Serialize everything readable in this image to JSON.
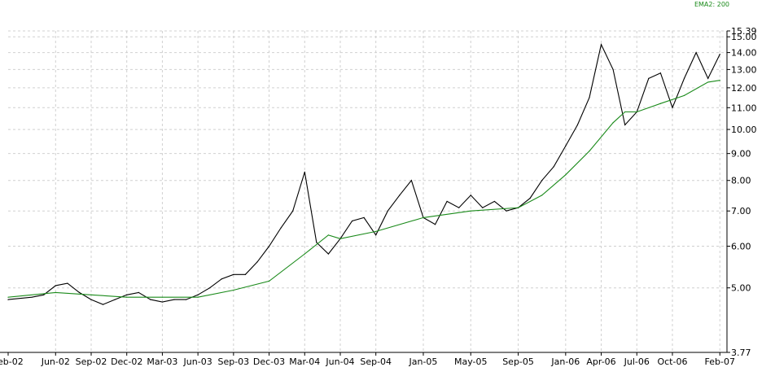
{
  "legend": {
    "ema_label": "EMA2: 200"
  },
  "colors": {
    "price": "#000000",
    "ema": "#1a8a1a",
    "grid": "#d0d0d0",
    "axis": "#000000",
    "background": "#ffffff"
  },
  "chart_data": {
    "type": "line",
    "x_ticks": [
      "Feb-02",
      "Jun-02",
      "Sep-02",
      "Dec-02",
      "Mar-03",
      "Jun-03",
      "Sep-03",
      "Dec-03",
      "Mar-04",
      "Jun-04",
      "Sep-04",
      "Jan-05",
      "May-05",
      "Sep-05",
      "Jan-06",
      "Apr-06",
      "Jul-06",
      "Oct-06",
      "Feb-07"
    ],
    "y_ticks": [
      "15.39",
      "15.00",
      "14.00",
      "13.00",
      "12.00",
      "11.00",
      "10.00",
      "9.00",
      "8.00",
      "7.00",
      "6.00",
      "5.00",
      "3.77"
    ],
    "ylim": [
      3.77,
      15.39
    ],
    "y_scale": "log",
    "grid": true,
    "legend_position": "top-right",
    "series": [
      {
        "name": "",
        "color": "#000000",
        "x": [
          "2002-02",
          "2002-04",
          "2002-05",
          "2002-06",
          "2002-07",
          "2002-08",
          "2002-09",
          "2002-10",
          "2002-11",
          "2002-12",
          "2003-01",
          "2003-02",
          "2003-03",
          "2003-04",
          "2003-05",
          "2003-06",
          "2003-07",
          "2003-08",
          "2003-09",
          "2003-10",
          "2003-11",
          "2003-12",
          "2004-01",
          "2004-02",
          "2004-03",
          "2004-04",
          "2004-05",
          "2004-06",
          "2004-07",
          "2004-08",
          "2004-09",
          "2004-10",
          "2004-11",
          "2004-12",
          "2005-01",
          "2005-02",
          "2005-03",
          "2005-04",
          "2005-05",
          "2005-06",
          "2005-07",
          "2005-08",
          "2005-09",
          "2005-10",
          "2005-11",
          "2005-12",
          "2006-01",
          "2006-02",
          "2006-03",
          "2006-04",
          "2006-05",
          "2006-06",
          "2006-07",
          "2006-08",
          "2006-09",
          "2006-10",
          "2006-11",
          "2006-12",
          "2007-01",
          "2007-02"
        ],
        "values": [
          4.75,
          4.8,
          4.85,
          5.05,
          5.1,
          4.9,
          4.75,
          4.65,
          4.75,
          4.85,
          4.9,
          4.75,
          4.7,
          4.75,
          4.75,
          4.85,
          5.0,
          5.2,
          5.3,
          5.3,
          5.6,
          6.0,
          6.5,
          7.0,
          8.3,
          6.1,
          5.8,
          6.2,
          6.7,
          6.8,
          6.3,
          7.0,
          7.5,
          8.0,
          6.8,
          6.6,
          7.3,
          7.1,
          7.5,
          7.1,
          7.3,
          7.0,
          7.1,
          7.4,
          8.0,
          8.5,
          9.3,
          10.2,
          11.5,
          14.5,
          13.0,
          10.2,
          10.8,
          12.5,
          12.8,
          11.0,
          12.5,
          14.0,
          12.5,
          13.9
        ]
      },
      {
        "name": "EMA2: 200",
        "color": "#1a8a1a",
        "x": [
          "2002-02",
          "2002-06",
          "2002-09",
          "2002-12",
          "2003-03",
          "2003-06",
          "2003-09",
          "2003-12",
          "2004-03",
          "2004-05",
          "2004-06",
          "2004-09",
          "2005-01",
          "2005-05",
          "2005-09",
          "2005-11",
          "2006-01",
          "2006-03",
          "2006-05",
          "2006-06",
          "2006-07",
          "2006-09",
          "2006-11",
          "2007-01",
          "2007-02"
        ],
        "values": [
          4.8,
          4.9,
          4.85,
          4.8,
          4.8,
          4.8,
          4.95,
          5.15,
          5.8,
          6.3,
          6.2,
          6.4,
          6.8,
          7.0,
          7.1,
          7.5,
          8.2,
          9.1,
          10.3,
          10.8,
          10.8,
          11.2,
          11.6,
          12.3,
          12.4
        ]
      }
    ]
  }
}
